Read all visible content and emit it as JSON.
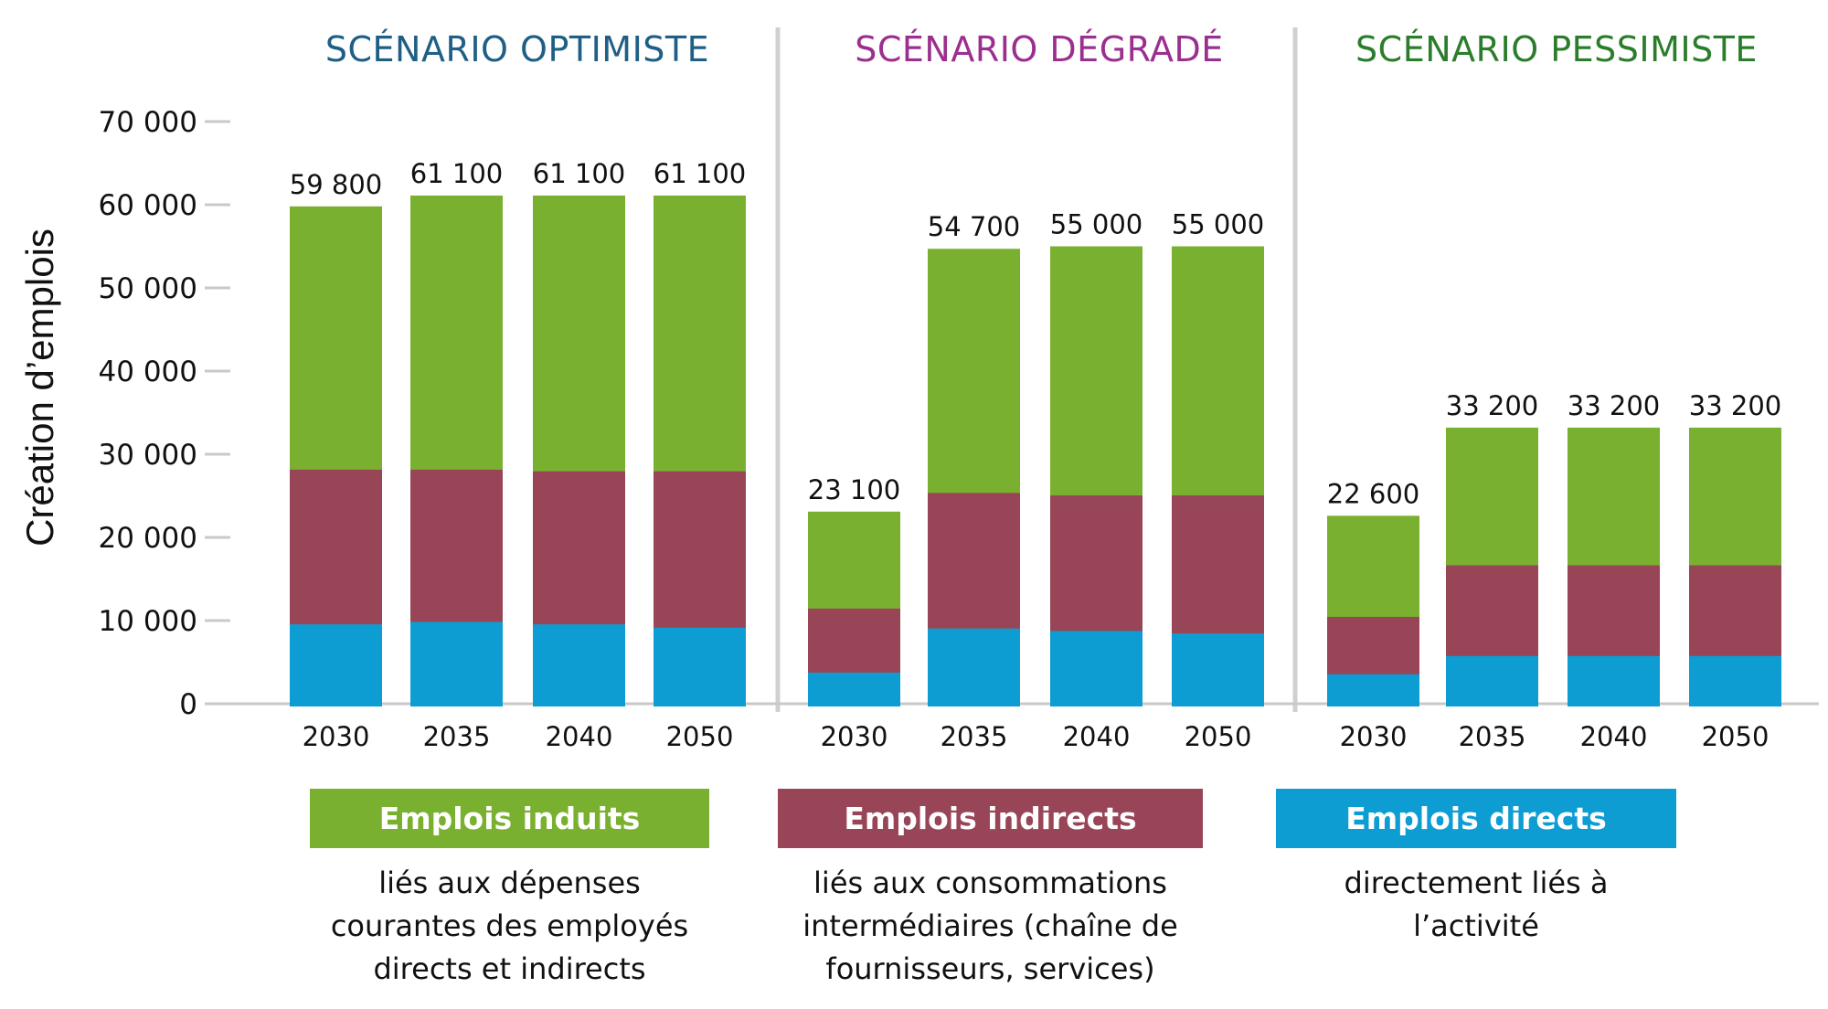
{
  "chart_data": {
    "type": "bar",
    "stacked": true,
    "ylabel": "Création d’emplois",
    "xlabel": "",
    "ylim": [
      0,
      70000
    ],
    "yticks": [
      0,
      10000,
      20000,
      30000,
      40000,
      50000,
      60000,
      70000
    ],
    "ytick_labels": [
      "0",
      "10 000",
      "20 000",
      "30 000",
      "40 000",
      "50 000",
      "60 000",
      "70 000"
    ],
    "grid": false,
    "series_order": [
      "Emplois directs",
      "Emplois indirects",
      "Emplois induits"
    ],
    "series_colors": {
      "Emplois directs": "#0e9dd3",
      "Emplois indirects": "#984558",
      "Emplois induits": "#7ab030"
    },
    "groups": [
      {
        "title": "SCÉNARIO OPTIMISTE",
        "title_color": "#1f5f85",
        "categories": [
          "2030",
          "2035",
          "2040",
          "2050"
        ],
        "series": [
          {
            "name": "Emplois directs",
            "values": [
              9600,
              9900,
              9600,
              9200
            ]
          },
          {
            "name": "Emplois indirects",
            "values": [
              18600,
              18300,
              18400,
              18800
            ]
          },
          {
            "name": "Emplois induits",
            "values": [
              31600,
              32900,
              33100,
              33100
            ]
          }
        ],
        "totals": [
          59800,
          61100,
          61100,
          61100
        ],
        "total_labels": [
          "59 800",
          "61 100",
          "61 100",
          "61 100"
        ]
      },
      {
        "title": "SCÉNARIO DÉGRADÉ",
        "title_color": "#9b2f8f",
        "categories": [
          "2030",
          "2035",
          "2040",
          "2050"
        ],
        "series": [
          {
            "name": "Emplois directs",
            "values": [
              3800,
              9100,
              8800,
              8500
            ]
          },
          {
            "name": "Emplois indirects",
            "values": [
              7700,
              16300,
              16300,
              16600
            ]
          },
          {
            "name": "Emplois induits",
            "values": [
              11600,
              29300,
              29900,
              29900
            ]
          }
        ],
        "totals": [
          23100,
          54700,
          55000,
          55000
        ],
        "total_labels": [
          "23 100",
          "54 700",
          "55 000",
          "55 000"
        ]
      },
      {
        "title": "SCÉNARIO PESSIMISTE",
        "title_color": "#2b7d2b",
        "categories": [
          "2030",
          "2035",
          "2040",
          "2050"
        ],
        "series": [
          {
            "name": "Emplois directs",
            "values": [
              3600,
              5800,
              5800,
              5800
            ]
          },
          {
            "name": "Emplois indirects",
            "values": [
              6900,
              10900,
              10900,
              10900
            ]
          },
          {
            "name": "Emplois induits",
            "values": [
              12100,
              16500,
              16500,
              16500
            ]
          }
        ],
        "totals": [
          22600,
          33200,
          33200,
          33200
        ],
        "total_labels": [
          "22 600",
          "33 200",
          "33 200",
          "33 200"
        ]
      }
    ],
    "legend": [
      {
        "name": "Emplois induits",
        "color": "#7ab030",
        "description": [
          "liés aux dépenses",
          "courantes des employés",
          "directs et indirects"
        ]
      },
      {
        "name": "Emplois indirects",
        "color": "#984558",
        "description": [
          "liés aux consommations",
          "intermédiaires (chaîne de",
          "fournisseurs, services)"
        ]
      },
      {
        "name": "Emplois directs",
        "color": "#0e9dd3",
        "description": [
          "directement liés à",
          "l’activité"
        ]
      }
    ],
    "legend_position": "bottom"
  }
}
